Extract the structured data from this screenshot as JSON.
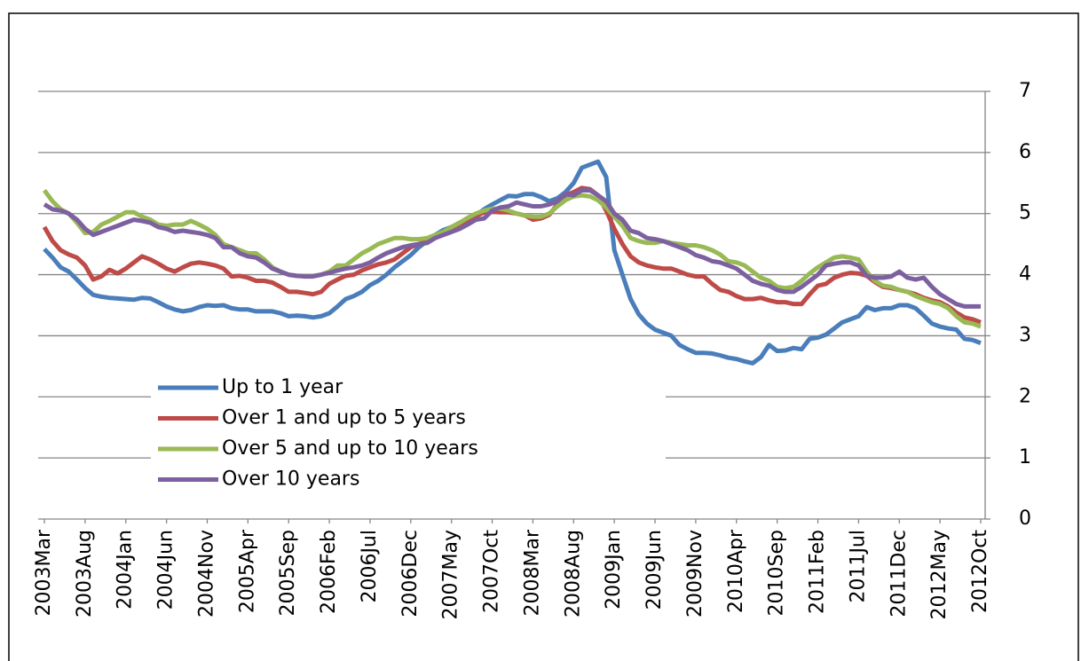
{
  "chart_data": {
    "type": "line",
    "categories": [
      "2003Mar",
      null,
      null,
      null,
      null,
      "2003Aug",
      null,
      null,
      null,
      null,
      "2004Jan",
      null,
      null,
      null,
      null,
      "2004Jun",
      null,
      null,
      null,
      null,
      "2004Nov",
      null,
      null,
      null,
      null,
      "2005Apr",
      null,
      null,
      null,
      null,
      "2005Sep",
      null,
      null,
      null,
      null,
      "2006Feb",
      null,
      null,
      null,
      null,
      "2006Jul",
      null,
      null,
      null,
      null,
      "2006Dec",
      null,
      null,
      null,
      null,
      "2007May",
      null,
      null,
      null,
      null,
      "2007Oct",
      null,
      null,
      null,
      null,
      "2008Mar",
      null,
      null,
      null,
      null,
      "2008Aug",
      null,
      null,
      null,
      null,
      "2009Jan",
      null,
      null,
      null,
      null,
      "2009Jun",
      null,
      null,
      null,
      null,
      "2009Nov",
      null,
      null,
      null,
      null,
      "2010Apr",
      null,
      null,
      null,
      null,
      "2010Sep",
      null,
      null,
      null,
      null,
      "2011Feb",
      null,
      null,
      null,
      null,
      "2011Jul",
      null,
      null,
      null,
      null,
      "2011Dec",
      null,
      null,
      null,
      null,
      "2012May",
      null,
      null,
      null,
      null,
      "2012Oct"
    ],
    "series": [
      {
        "name": "Up to 1 year",
        "color": "#4a7ebb",
        "values": [
          4.42,
          4.28,
          4.12,
          4.05,
          3.92,
          3.78,
          3.67,
          3.64,
          3.62,
          3.61,
          3.6,
          3.59,
          3.62,
          3.61,
          3.55,
          3.48,
          3.43,
          3.4,
          3.42,
          3.47,
          3.5,
          3.49,
          3.5,
          3.45,
          3.43,
          3.43,
          3.4,
          3.4,
          3.4,
          3.37,
          3.32,
          3.33,
          3.32,
          3.3,
          3.32,
          3.37,
          3.48,
          3.6,
          3.65,
          3.72,
          3.83,
          3.9,
          4.0,
          4.12,
          4.22,
          4.32,
          4.45,
          4.55,
          4.65,
          4.73,
          4.78,
          4.85,
          4.9,
          4.97,
          5.07,
          5.15,
          5.22,
          5.29,
          5.28,
          5.32,
          5.32,
          5.27,
          5.2,
          5.25,
          5.35,
          5.5,
          5.75,
          5.8,
          5.85,
          5.6,
          4.4,
          4.0,
          3.6,
          3.35,
          3.2,
          3.1,
          3.05,
          3.0,
          2.85,
          2.78,
          2.72,
          2.72,
          2.71,
          2.68,
          2.64,
          2.62,
          2.58,
          2.55,
          2.65,
          2.85,
          2.75,
          2.76,
          2.8,
          2.78,
          2.95,
          2.97,
          3.02,
          3.12,
          3.22,
          3.27,
          3.32,
          3.47,
          3.42,
          3.45,
          3.45,
          3.5,
          3.5,
          3.45,
          3.33,
          3.2,
          3.15,
          3.12,
          3.1,
          2.95,
          2.93,
          2.88
        ]
      },
      {
        "name": "Over 1 and up to 5 years",
        "color": "#be4b48",
        "values": [
          4.78,
          4.55,
          4.4,
          4.33,
          4.28,
          4.15,
          3.92,
          3.97,
          4.08,
          4.02,
          4.1,
          4.2,
          4.3,
          4.25,
          4.18,
          4.1,
          4.05,
          4.12,
          4.18,
          4.2,
          4.18,
          4.15,
          4.1,
          3.97,
          3.98,
          3.95,
          3.9,
          3.9,
          3.87,
          3.8,
          3.72,
          3.72,
          3.7,
          3.68,
          3.72,
          3.85,
          3.92,
          3.98,
          4.0,
          4.07,
          4.12,
          4.17,
          4.2,
          4.25,
          4.35,
          4.45,
          4.5,
          4.55,
          4.62,
          4.68,
          4.72,
          4.8,
          4.88,
          4.96,
          5.02,
          5.03,
          5.02,
          5.02,
          5.0,
          4.97,
          4.9,
          4.92,
          4.98,
          5.15,
          5.3,
          5.35,
          5.42,
          5.4,
          5.3,
          5.05,
          4.75,
          4.5,
          4.3,
          4.2,
          4.15,
          4.12,
          4.1,
          4.1,
          4.05,
          4.0,
          3.97,
          3.97,
          3.85,
          3.75,
          3.72,
          3.65,
          3.6,
          3.6,
          3.62,
          3.58,
          3.55,
          3.55,
          3.52,
          3.52,
          3.68,
          3.82,
          3.85,
          3.95,
          4.0,
          4.03,
          4.02,
          3.98,
          3.88,
          3.8,
          3.78,
          3.75,
          3.72,
          3.68,
          3.62,
          3.58,
          3.55,
          3.48,
          3.38,
          3.3,
          3.27,
          3.22
        ]
      },
      {
        "name": "Over 5 and up to 10 years",
        "color": "#98b954",
        "values": [
          5.38,
          5.2,
          5.07,
          5.0,
          4.85,
          4.68,
          4.7,
          4.82,
          4.88,
          4.95,
          5.02,
          5.02,
          4.95,
          4.9,
          4.82,
          4.8,
          4.82,
          4.82,
          4.88,
          4.82,
          4.75,
          4.65,
          4.5,
          4.45,
          4.4,
          4.35,
          4.35,
          4.25,
          4.12,
          4.05,
          4.0,
          3.98,
          3.98,
          3.98,
          4.0,
          4.05,
          4.15,
          4.15,
          4.25,
          4.35,
          4.42,
          4.5,
          4.55,
          4.6,
          4.6,
          4.58,
          4.58,
          4.6,
          4.65,
          4.7,
          4.78,
          4.85,
          4.93,
          5.0,
          5.05,
          5.08,
          5.08,
          5.05,
          5.0,
          4.97,
          4.95,
          4.95,
          5.0,
          5.12,
          5.22,
          5.28,
          5.3,
          5.28,
          5.22,
          5.1,
          4.95,
          4.8,
          4.6,
          4.55,
          4.52,
          4.52,
          4.55,
          4.52,
          4.5,
          4.48,
          4.48,
          4.45,
          4.4,
          4.33,
          4.22,
          4.2,
          4.15,
          4.05,
          3.95,
          3.9,
          3.8,
          3.78,
          3.8,
          3.9,
          4.02,
          4.12,
          4.2,
          4.28,
          4.3,
          4.28,
          4.25,
          4.05,
          3.9,
          3.82,
          3.8,
          3.75,
          3.72,
          3.65,
          3.6,
          3.55,
          3.52,
          3.45,
          3.32,
          3.22,
          3.2,
          3.15
        ]
      },
      {
        "name": "Over 10 years",
        "color": "#7d60a0",
        "values": [
          5.15,
          5.07,
          5.05,
          5.0,
          4.9,
          4.75,
          4.65,
          4.7,
          4.75,
          4.8,
          4.85,
          4.9,
          4.88,
          4.85,
          4.78,
          4.75,
          4.7,
          4.72,
          4.7,
          4.68,
          4.65,
          4.6,
          4.45,
          4.45,
          4.35,
          4.3,
          4.28,
          4.2,
          4.1,
          4.05,
          4.0,
          3.98,
          3.97,
          3.97,
          4.0,
          4.03,
          4.07,
          4.1,
          4.12,
          4.15,
          4.2,
          4.28,
          4.35,
          4.4,
          4.45,
          4.48,
          4.5,
          4.52,
          4.6,
          4.65,
          4.7,
          4.75,
          4.82,
          4.9,
          4.92,
          5.05,
          5.1,
          5.12,
          5.18,
          5.15,
          5.12,
          5.12,
          5.15,
          5.2,
          5.32,
          5.3,
          5.38,
          5.38,
          5.3,
          5.2,
          5.0,
          4.9,
          4.72,
          4.68,
          4.6,
          4.58,
          4.55,
          4.5,
          4.45,
          4.4,
          4.32,
          4.28,
          4.22,
          4.2,
          4.15,
          4.1,
          4.0,
          3.9,
          3.85,
          3.82,
          3.75,
          3.72,
          3.72,
          3.8,
          3.9,
          4.0,
          4.15,
          4.18,
          4.2,
          4.2,
          4.15,
          3.98,
          3.95,
          3.95,
          3.97,
          4.05,
          3.95,
          3.92,
          3.95,
          3.8,
          3.68,
          3.6,
          3.52,
          3.48,
          3.48,
          3.48
        ]
      }
    ],
    "ylim": [
      0,
      7
    ],
    "yticks": [
      0,
      1,
      2,
      3,
      4,
      5,
      6,
      7
    ],
    "grid": true
  }
}
